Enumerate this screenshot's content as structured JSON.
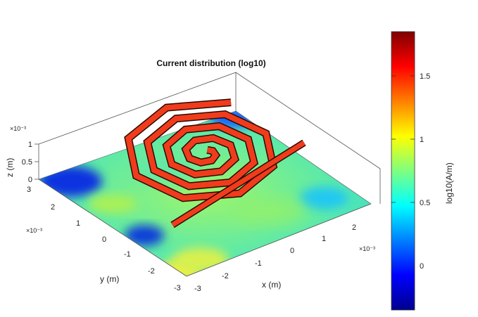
{
  "chart_data": {
    "type": "surface3d",
    "title": "Current distribution (log10)",
    "xlabel": "x (m)",
    "ylabel": "y (m)",
    "zlabel": "z (m)",
    "x_multiplier": "×10⁻³",
    "y_multiplier": "×10⁻³",
    "z_multiplier": "×10⁻³",
    "xlim": [
      -3,
      3
    ],
    "ylim": [
      -3,
      3
    ],
    "zlim": [
      0,
      1
    ],
    "x_ticks": [
      "-3",
      "-2",
      "-1",
      "0",
      "1",
      "2"
    ],
    "y_ticks": [
      "-3",
      "-2",
      "-1",
      "0",
      "1",
      "2",
      "3"
    ],
    "z_ticks": [
      "0",
      "0.5",
      "1"
    ],
    "colorbar": {
      "label": "log10(A/m)",
      "range": [
        -0.35,
        1.85
      ],
      "ticks": [
        "0",
        "0.5",
        "1",
        "1.5"
      ],
      "colormap": "jet"
    },
    "ground_plane_level": 0.75,
    "spiral_level": 1.75,
    "spiral_turns": 4
  }
}
